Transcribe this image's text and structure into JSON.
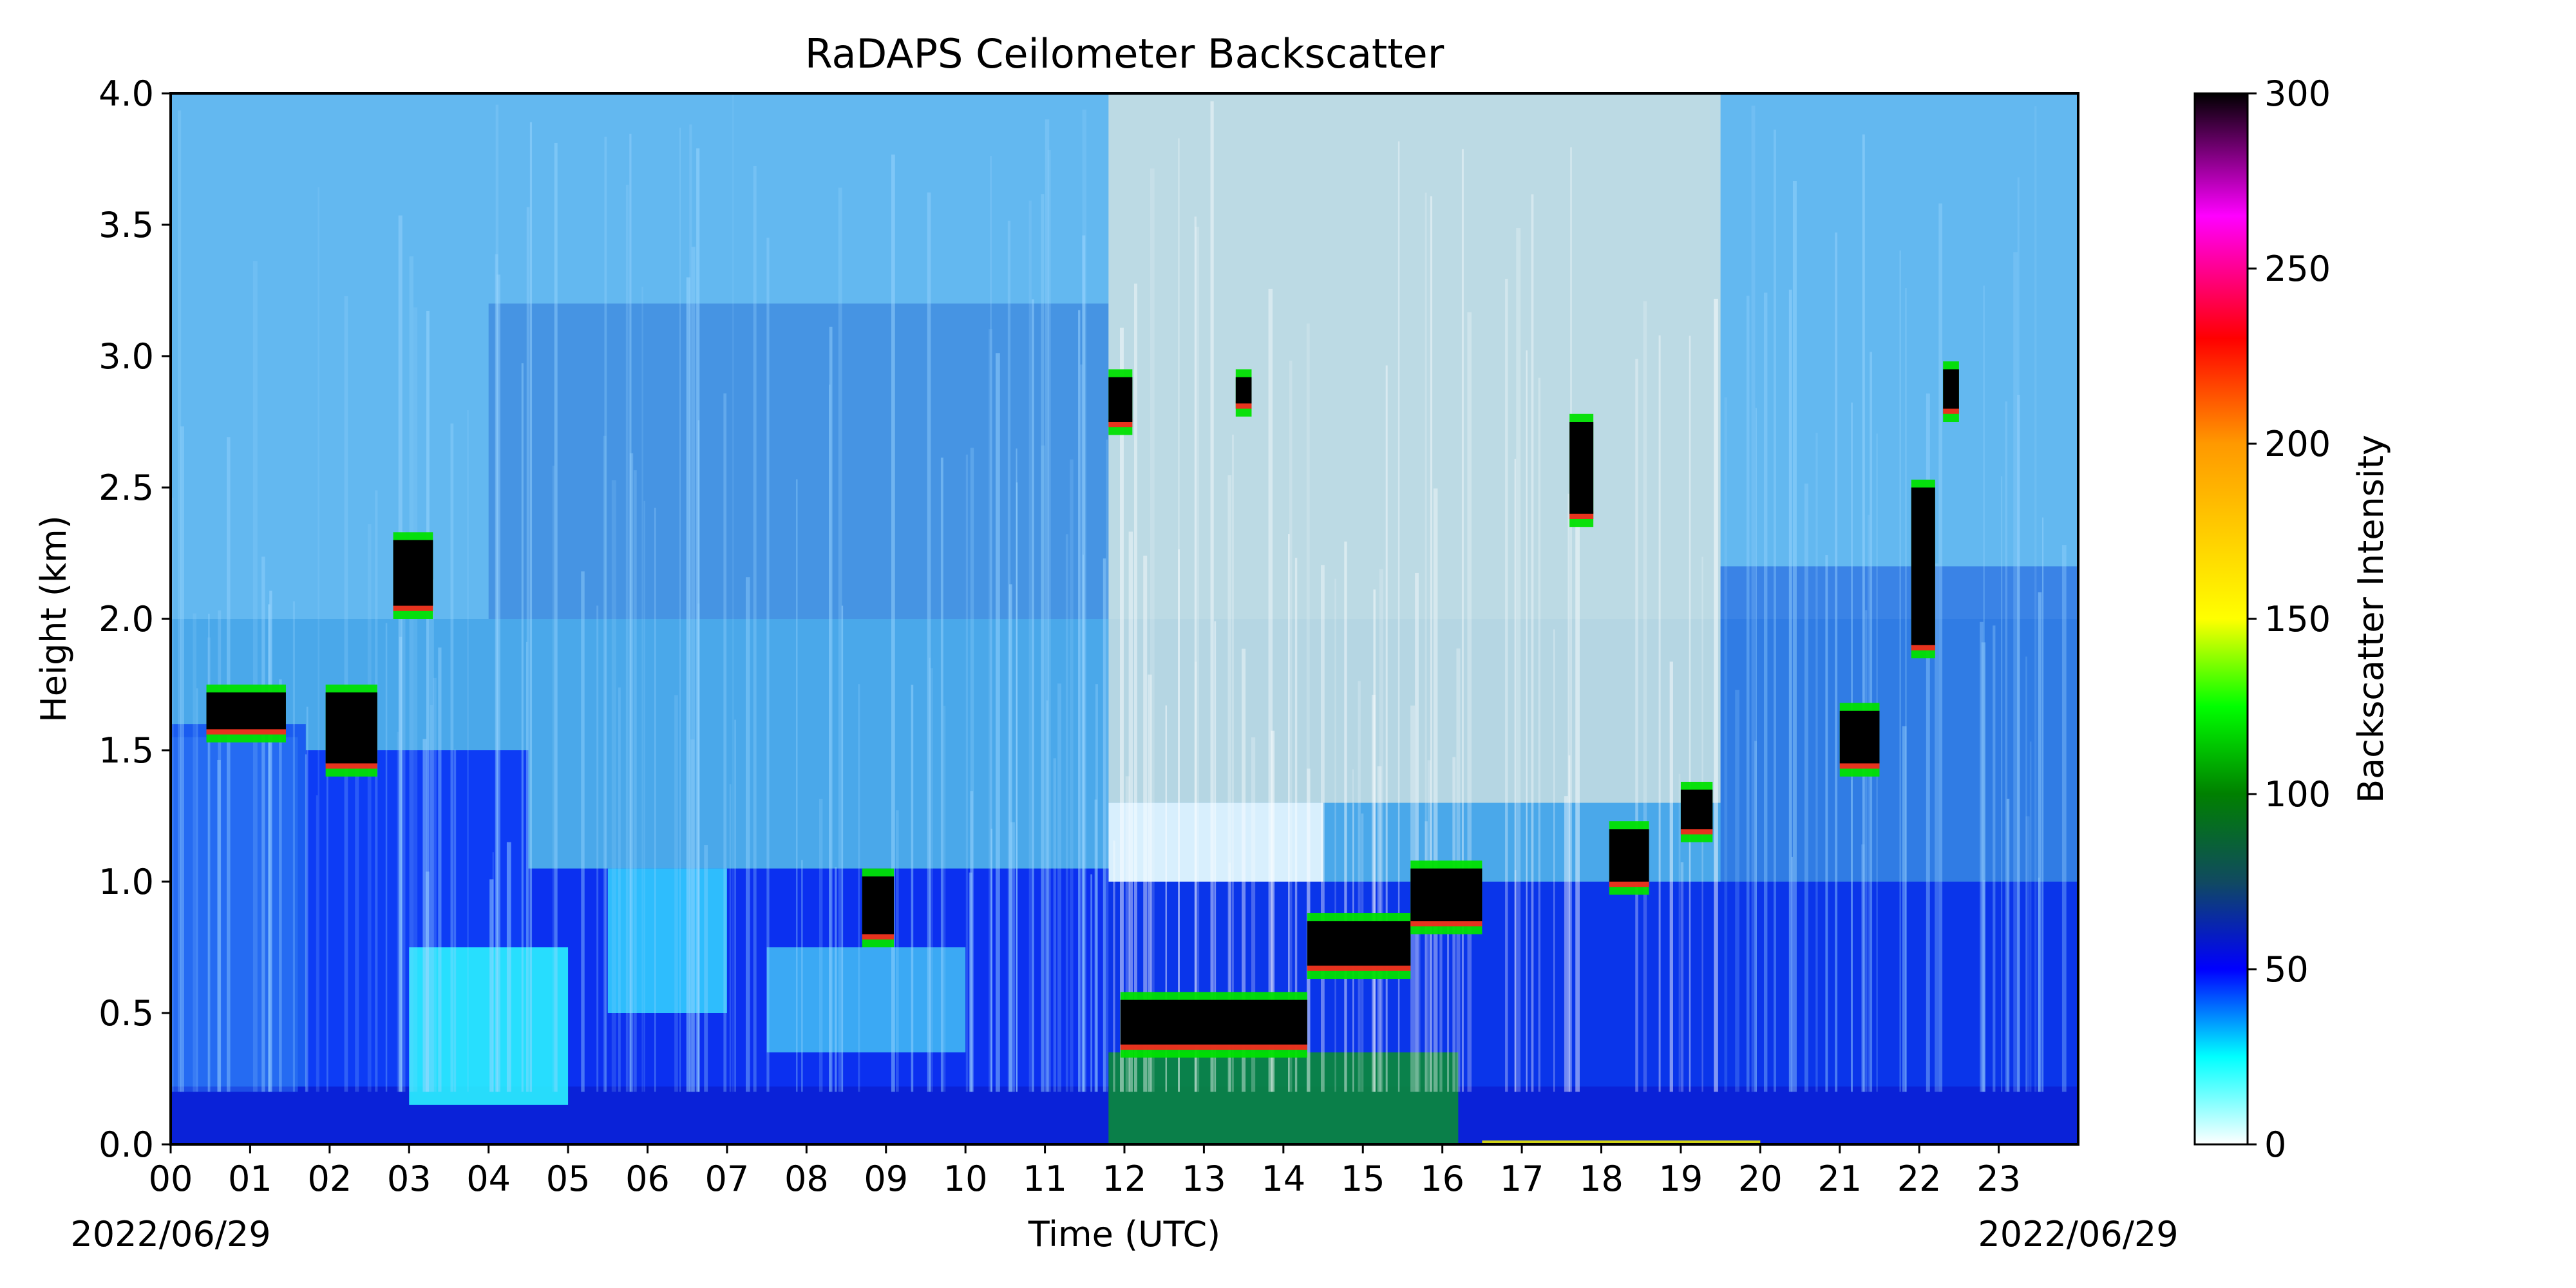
{
  "chart_data": {
    "type": "heatmap",
    "title": "RaDAPS Ceilometer Backscatter",
    "xlabel": "Time (UTC)",
    "ylabel": "Height (km)",
    "x_range": [
      0,
      24
    ],
    "x_ticks": [
      "00",
      "01",
      "02",
      "03",
      "04",
      "05",
      "06",
      "07",
      "08",
      "09",
      "10",
      "11",
      "12",
      "13",
      "14",
      "15",
      "16",
      "17",
      "18",
      "19",
      "20",
      "21",
      "22",
      "23"
    ],
    "date_left": "2022/06/29",
    "date_right": "2022/06/29",
    "ylim": [
      0,
      4
    ],
    "y_ticks": [
      "0.0",
      "0.5",
      "1.0",
      "1.5",
      "2.0",
      "2.5",
      "3.0",
      "3.5",
      "4.0"
    ],
    "y_tick_values": [
      0,
      0.5,
      1.0,
      1.5,
      2.0,
      2.5,
      3.0,
      3.5,
      4.0
    ],
    "colorbar": {
      "label": "Backscatter Intensity",
      "range": [
        0,
        300
      ],
      "ticks": [
        "0",
        "50",
        "100",
        "150",
        "200",
        "250",
        "300"
      ],
      "tick_values": [
        0,
        50,
        100,
        150,
        200,
        250,
        300
      ],
      "stops": [
        {
          "v": 0,
          "color": "#ffffff"
        },
        {
          "v": 25,
          "color": "#00ffff"
        },
        {
          "v": 50,
          "color": "#0000ff"
        },
        {
          "v": 75,
          "color": "#104a60"
        },
        {
          "v": 100,
          "color": "#008000"
        },
        {
          "v": 125,
          "color": "#00ff00"
        },
        {
          "v": 150,
          "color": "#ffff00"
        },
        {
          "v": 200,
          "color": "#ff9900"
        },
        {
          "v": 230,
          "color": "#ff0000"
        },
        {
          "v": 265,
          "color": "#ff00ff"
        },
        {
          "v": 300,
          "color": "#000000"
        }
      ]
    },
    "grid": false
  }
}
